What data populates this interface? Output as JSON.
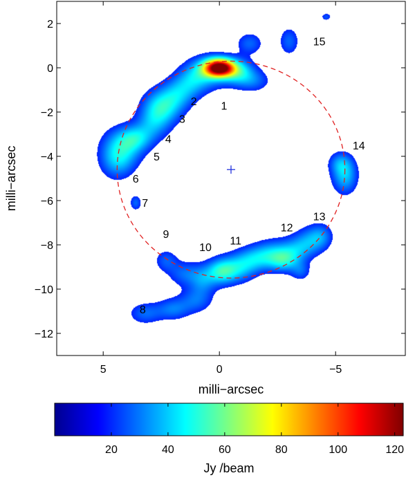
{
  "chart_data": {
    "type": "heatmap",
    "xlabel": "milli−arcsec",
    "ylabel": "milli−arcsec",
    "x_direction": "reversed",
    "xlim": [
      7,
      -8
    ],
    "ylim": [
      -13,
      3
    ],
    "x_ticks": [
      5,
      0,
      -5
    ],
    "x_tick_labels": [
      "5",
      "0",
      "−5"
    ],
    "y_ticks": [
      2,
      0,
      -2,
      -4,
      -6,
      -8,
      -10,
      -12
    ],
    "y_tick_labels": [
      "2",
      "0",
      "−2",
      "−4",
      "−6",
      "−8",
      "−10",
      "−12"
    ],
    "grid": false,
    "colorbar": {
      "label": "Jy /beam",
      "range": [
        0,
        123
      ],
      "ticks": [
        20,
        40,
        60,
        80,
        100,
        120
      ],
      "tick_labels": [
        "20",
        "40",
        "60",
        "80",
        "100",
        "120"
      ],
      "colormap": "jet"
    },
    "ring": {
      "center": [
        -0.5,
        -4.6
      ],
      "radius": 4.9,
      "color": "#e02020",
      "style": "dashed"
    },
    "center_marker": {
      "x": -0.5,
      "y": -4.6,
      "color": "#2233dd"
    },
    "features": [
      {
        "label": "1",
        "x": -0.2,
        "y": -1.7
      },
      {
        "label": "2",
        "x": 1.1,
        "y": -1.5
      },
      {
        "label": "3",
        "x": 1.6,
        "y": -2.3
      },
      {
        "label": "4",
        "x": 2.2,
        "y": -3.2
      },
      {
        "label": "5",
        "x": 2.7,
        "y": -4.0
      },
      {
        "label": "6",
        "x": 3.6,
        "y": -5.0
      },
      {
        "label": "7",
        "x": 3.2,
        "y": -6.1
      },
      {
        "label": "8",
        "x": 3.3,
        "y": -10.9
      },
      {
        "label": "9",
        "x": 2.3,
        "y": -7.5
      },
      {
        "label": "10",
        "x": 0.6,
        "y": -8.1
      },
      {
        "label": "11",
        "x": -0.7,
        "y": -7.8
      },
      {
        "label": "12",
        "x": -2.9,
        "y": -7.2
      },
      {
        "label": "13",
        "x": -4.3,
        "y": -6.7
      },
      {
        "label": "14",
        "x": -6.0,
        "y": -3.5
      },
      {
        "label": "15",
        "x": -4.3,
        "y": 1.2
      }
    ],
    "emission": [
      {
        "x": 0.0,
        "y": 0.0,
        "sx": 0.45,
        "sy": 0.28,
        "peak": 122
      },
      {
        "x": -0.8,
        "y": -0.2,
        "sx": 0.5,
        "sy": 0.4,
        "peak": 35
      },
      {
        "x": 0.5,
        "y": -0.2,
        "sx": 0.6,
        "sy": 0.5,
        "peak": 28
      },
      {
        "x": -1.3,
        "y": 1.1,
        "sx": 0.4,
        "sy": 0.35,
        "peak": 18
      },
      {
        "x": -1.5,
        "y": -0.6,
        "sx": 0.5,
        "sy": 0.35,
        "peak": 16
      },
      {
        "x": 1.2,
        "y": -0.6,
        "sx": 0.5,
        "sy": 0.5,
        "peak": 22
      },
      {
        "x": 1.8,
        "y": -1.2,
        "sx": 0.5,
        "sy": 0.5,
        "peak": 24
      },
      {
        "x": 2.5,
        "y": -1.8,
        "sx": 0.55,
        "sy": 0.55,
        "peak": 38
      },
      {
        "x": 2.9,
        "y": -2.6,
        "sx": 0.5,
        "sy": 0.5,
        "peak": 20
      },
      {
        "x": 3.6,
        "y": -3.2,
        "sx": 0.5,
        "sy": 0.4,
        "peak": 26
      },
      {
        "x": 4.2,
        "y": -3.6,
        "sx": 0.6,
        "sy": 0.6,
        "peak": 30
      },
      {
        "x": 4.4,
        "y": -4.3,
        "sx": 0.5,
        "sy": 0.55,
        "peak": 20
      },
      {
        "x": 3.6,
        "y": -6.1,
        "sx": 0.18,
        "sy": 0.25,
        "peak": 18
      },
      {
        "x": 2.3,
        "y": -8.7,
        "sx": 0.35,
        "sy": 0.35,
        "peak": 16
      },
      {
        "x": 1.5,
        "y": -9.3,
        "sx": 0.5,
        "sy": 0.4,
        "peak": 18
      },
      {
        "x": 0.7,
        "y": -9.6,
        "sx": 0.4,
        "sy": 0.45,
        "peak": 20
      },
      {
        "x": 1.0,
        "y": -10.5,
        "sx": 0.5,
        "sy": 0.4,
        "peak": 18
      },
      {
        "x": 2.0,
        "y": -10.9,
        "sx": 0.5,
        "sy": 0.35,
        "peak": 20
      },
      {
        "x": 3.2,
        "y": -11.1,
        "sx": 0.5,
        "sy": 0.35,
        "peak": 18
      },
      {
        "x": -0.1,
        "y": -9.2,
        "sx": 0.45,
        "sy": 0.4,
        "peak": 40
      },
      {
        "x": -0.9,
        "y": -9.0,
        "sx": 0.5,
        "sy": 0.45,
        "peak": 28
      },
      {
        "x": -1.6,
        "y": -8.6,
        "sx": 0.5,
        "sy": 0.4,
        "peak": 24
      },
      {
        "x": -2.3,
        "y": -8.4,
        "sx": 0.5,
        "sy": 0.45,
        "peak": 22
      },
      {
        "x": -2.8,
        "y": -8.7,
        "sx": 0.45,
        "sy": 0.35,
        "peak": 30
      },
      {
        "x": -3.3,
        "y": -8.2,
        "sx": 0.5,
        "sy": 0.4,
        "peak": 22
      },
      {
        "x": -3.9,
        "y": -7.8,
        "sx": 0.45,
        "sy": 0.45,
        "peak": 20
      },
      {
        "x": -4.4,
        "y": -7.6,
        "sx": 0.35,
        "sy": 0.4,
        "peak": 18
      },
      {
        "x": -3.5,
        "y": -9.2,
        "sx": 0.3,
        "sy": 0.3,
        "peak": 16
      },
      {
        "x": -5.4,
        "y": -4.9,
        "sx": 0.38,
        "sy": 0.55,
        "peak": 30
      },
      {
        "x": -5.2,
        "y": -4.3,
        "sx": 0.35,
        "sy": 0.35,
        "peak": 18
      },
      {
        "x": -3.0,
        "y": 1.2,
        "sx": 0.3,
        "sy": 0.45,
        "peak": 18
      },
      {
        "x": -4.6,
        "y": 2.3,
        "sx": 0.15,
        "sy": 0.12,
        "peak": 16
      }
    ]
  }
}
